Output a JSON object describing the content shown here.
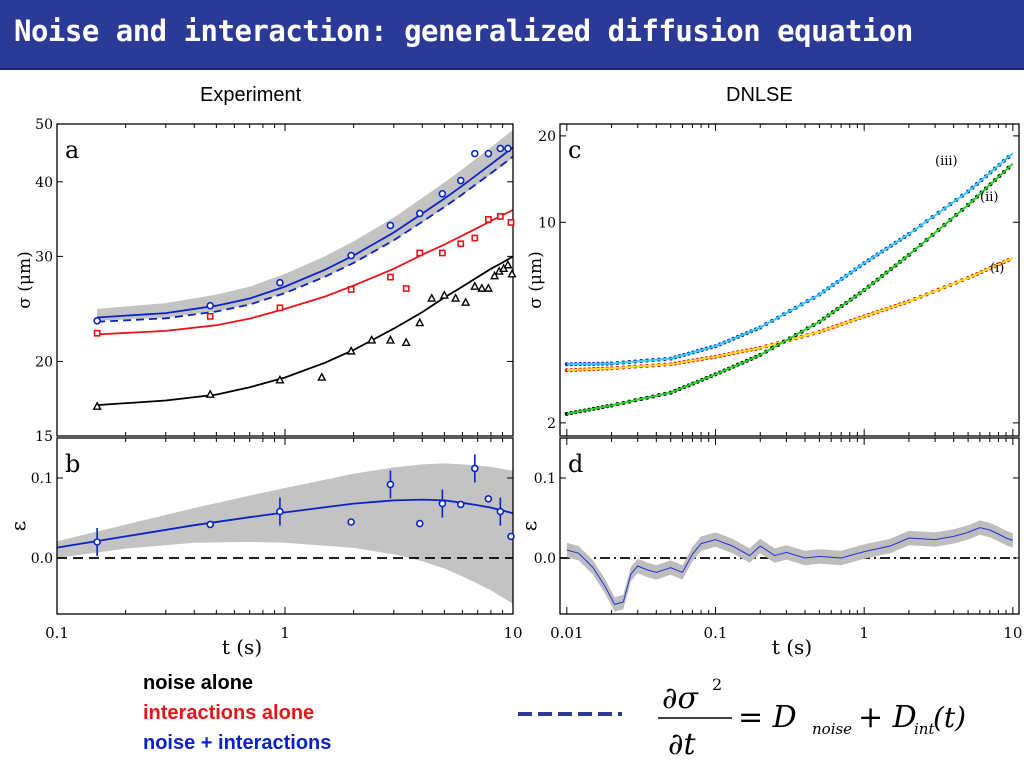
{
  "slide": {
    "title": "Noise and interaction: generalized diffusion equation",
    "col_left_heading": "Experiment",
    "col_right_heading": "DNLSE"
  },
  "legend": {
    "noise": "noise alone",
    "interactions": "interactions alone",
    "both": "noise + interactions",
    "colors": {
      "noise": "#000000",
      "interactions": "#e8141a",
      "both": "#0a22c8"
    }
  },
  "equation": {
    "numerator": "∂σ",
    "power": "2",
    "denominator": "∂t",
    "rhs": "= D",
    "sub1": "noise",
    "plus": "+ D",
    "sub2": "int",
    "arg": "(t)"
  },
  "chart_data": [
    {
      "id": "a",
      "type": "scatter",
      "panel_label": "a",
      "xscale": "log",
      "yscale": "log",
      "xlim": [
        0.1,
        10
      ],
      "ylim": [
        15,
        50
      ],
      "yticks": [
        "15",
        "20",
        "30",
        "40",
        "50"
      ],
      "ylabel": "σ (μm)",
      "shaded_band": true,
      "series": [
        {
          "key": "noise",
          "color": "#000000",
          "marker": "triangle",
          "points": [
            [
              0.15,
              16.8
            ],
            [
              0.47,
              17.6
            ],
            [
              0.95,
              18.6
            ],
            [
              1.45,
              18.8
            ],
            [
              1.95,
              20.8
            ],
            [
              2.4,
              21.7
            ],
            [
              2.9,
              21.7
            ],
            [
              3.4,
              21.5
            ],
            [
              3.9,
              23.2
            ],
            [
              4.4,
              25.5
            ],
            [
              5.0,
              25.8
            ],
            [
              5.6,
              25.5
            ],
            [
              6.2,
              25.1
            ],
            [
              6.8,
              26.7
            ],
            [
              7.3,
              26.5
            ],
            [
              7.8,
              26.5
            ],
            [
              8.3,
              27.8
            ],
            [
              8.7,
              28.3
            ],
            [
              9.1,
              28.6
            ],
            [
              9.5,
              29.0
            ],
            [
              9.9,
              28.0
            ]
          ],
          "fit": [
            [
              0.15,
              16.9
            ],
            [
              0.3,
              17.2
            ],
            [
              0.5,
              17.6
            ],
            [
              0.7,
              18.1
            ],
            [
              1.0,
              18.8
            ],
            [
              1.5,
              19.9
            ],
            [
              2.0,
              20.9
            ],
            [
              3.0,
              22.7
            ],
            [
              4.0,
              24.2
            ],
            [
              5.0,
              25.6
            ],
            [
              6.0,
              26.7
            ],
            [
              7.0,
              27.7
            ],
            [
              8.0,
              28.6
            ],
            [
              9.0,
              29.3
            ],
            [
              10.0,
              30.0
            ]
          ]
        },
        {
          "key": "interactions",
          "color": "#e8141a",
          "marker": "square",
          "points": [
            [
              0.15,
              22.3
            ],
            [
              0.47,
              23.8
            ],
            [
              0.95,
              24.6
            ],
            [
              1.95,
              26.4
            ],
            [
              2.9,
              27.7
            ],
            [
              3.4,
              26.5
            ],
            [
              3.9,
              30.4
            ],
            [
              4.9,
              30.4
            ],
            [
              5.9,
              31.5
            ],
            [
              6.8,
              32.2
            ],
            [
              7.8,
              34.6
            ],
            [
              8.8,
              35.0
            ],
            [
              9.8,
              34.2
            ]
          ],
          "fit": [
            [
              0.15,
              22.2
            ],
            [
              0.3,
              22.5
            ],
            [
              0.5,
              23.0
            ],
            [
              0.7,
              23.6
            ],
            [
              1.0,
              24.5
            ],
            [
              1.5,
              25.7
            ],
            [
              2.0,
              26.8
            ],
            [
              3.0,
              28.6
            ],
            [
              4.0,
              30.2
            ],
            [
              5.0,
              31.4
            ],
            [
              6.0,
              32.5
            ],
            [
              7.0,
              33.5
            ],
            [
              8.0,
              34.4
            ],
            [
              9.0,
              35.2
            ],
            [
              10.0,
              35.9
            ]
          ]
        },
        {
          "key": "both",
          "color": "#0a22c8",
          "marker": "circle",
          "points": [
            [
              0.15,
              23.4
            ],
            [
              0.47,
              24.8
            ],
            [
              0.95,
              27.1
            ],
            [
              1.95,
              30.1
            ],
            [
              2.9,
              33.8
            ],
            [
              3.9,
              35.4
            ],
            [
              4.9,
              38.2
            ],
            [
              5.9,
              40.2
            ],
            [
              6.8,
              44.6
            ],
            [
              7.8,
              44.6
            ],
            [
              8.8,
              45.5
            ],
            [
              9.5,
              45.5
            ]
          ],
          "fit": [
            [
              0.15,
              23.7
            ],
            [
              0.3,
              24.1
            ],
            [
              0.5,
              24.8
            ],
            [
              0.7,
              25.5
            ],
            [
              1.0,
              26.7
            ],
            [
              1.5,
              28.5
            ],
            [
              2.0,
              30.1
            ],
            [
              3.0,
              32.9
            ],
            [
              4.0,
              35.4
            ],
            [
              5.0,
              37.5
            ],
            [
              6.0,
              39.4
            ],
            [
              7.0,
              41.2
            ],
            [
              8.0,
              42.8
            ],
            [
              9.0,
              44.3
            ],
            [
              10.0,
              45.7
            ]
          ]
        }
      ]
    },
    {
      "id": "b",
      "type": "scatter",
      "panel_label": "b",
      "xscale": "log",
      "xlim": [
        0.1,
        10
      ],
      "ylim": [
        -0.07,
        0.15
      ],
      "yticks": [
        "0.0",
        "0.1"
      ],
      "ylabel": "ε",
      "xlabel": "t (s)",
      "xticks": [
        "0.1",
        "1",
        "10"
      ],
      "zero_line": true,
      "shaded_band": true,
      "series": [
        {
          "key": "both",
          "color": "#0a22c8",
          "marker": "circle",
          "points": [
            [
              0.15,
              0.02
            ],
            [
              0.47,
              0.042
            ],
            [
              0.95,
              0.058
            ],
            [
              1.95,
              0.045
            ],
            [
              2.9,
              0.092
            ],
            [
              3.9,
              0.043
            ],
            [
              4.9,
              0.068
            ],
            [
              5.9,
              0.067
            ],
            [
              6.8,
              0.112
            ],
            [
              7.8,
              0.074
            ],
            [
              8.8,
              0.058
            ],
            [
              9.8,
              0.027
            ]
          ],
          "fit": [
            [
              0.1,
              0.013
            ],
            [
              0.2,
              0.027
            ],
            [
              0.4,
              0.041
            ],
            [
              0.7,
              0.051
            ],
            [
              1.0,
              0.057
            ],
            [
              2.0,
              0.068
            ],
            [
              3.0,
              0.072
            ],
            [
              4.0,
              0.073
            ],
            [
              5.0,
              0.072
            ],
            [
              6.0,
              0.069
            ],
            [
              7.0,
              0.066
            ],
            [
              8.0,
              0.063
            ],
            [
              10.0,
              0.056
            ]
          ]
        }
      ]
    },
    {
      "id": "c",
      "type": "line",
      "panel_label": "c",
      "xscale": "log",
      "yscale": "log",
      "xlim": [
        0.009,
        11
      ],
      "ylim": [
        1.8,
        22
      ],
      "yticks": [
        "2",
        "10",
        "20"
      ],
      "ylabel": "σ (μm)",
      "annotations": [
        "(iii)",
        "(ii)",
        "(i)"
      ],
      "series": [
        {
          "key": "both",
          "color": "#0a22c8",
          "points": [
            [
              0.01,
              3.2
            ],
            [
              0.02,
              3.22
            ],
            [
              0.05,
              3.35
            ],
            [
              0.1,
              3.7
            ],
            [
              0.2,
              4.3
            ],
            [
              0.5,
              5.6
            ],
            [
              1,
              7.2
            ],
            [
              2,
              9.1
            ],
            [
              5,
              12.8
            ],
            [
              10,
              17.4
            ]
          ]
        },
        {
          "key": "interactions",
          "color": "#e8141a",
          "points": [
            [
              0.01,
              3.05
            ],
            [
              0.02,
              3.1
            ],
            [
              0.05,
              3.2
            ],
            [
              0.1,
              3.4
            ],
            [
              0.2,
              3.65
            ],
            [
              0.5,
              4.15
            ],
            [
              1,
              4.7
            ],
            [
              2,
              5.3
            ],
            [
              5,
              6.4
            ],
            [
              10,
              7.5
            ]
          ]
        },
        {
          "key": "noise",
          "color": "#000000",
          "points": [
            [
              0.01,
              2.15
            ],
            [
              0.02,
              2.3
            ],
            [
              0.05,
              2.55
            ],
            [
              0.1,
              2.95
            ],
            [
              0.2,
              3.45
            ],
            [
              0.5,
              4.5
            ],
            [
              1,
              5.8
            ],
            [
              2,
              7.7
            ],
            [
              5,
              11.5
            ],
            [
              10,
              16.0
            ]
          ]
        }
      ]
    },
    {
      "id": "d",
      "type": "line",
      "panel_label": "d",
      "xscale": "log",
      "xlim": [
        0.009,
        11
      ],
      "ylim": [
        -0.07,
        0.15
      ],
      "yticks": [
        "0.0",
        "0.1"
      ],
      "ylabel": "ε",
      "xlabel": "t (s)",
      "xticks": [
        "0.01",
        "0.1",
        "1",
        "10"
      ],
      "zero_line": true,
      "series": [
        {
          "key": "both",
          "color": "#2432d8",
          "points": [
            [
              0.01,
              0.01
            ],
            [
              0.012,
              0.006
            ],
            [
              0.015,
              -0.012
            ],
            [
              0.018,
              -0.035
            ],
            [
              0.021,
              -0.058
            ],
            [
              0.024,
              -0.055
            ],
            [
              0.027,
              -0.02
            ],
            [
              0.03,
              -0.01
            ],
            [
              0.035,
              -0.015
            ],
            [
              0.04,
              -0.018
            ],
            [
              0.05,
              -0.012
            ],
            [
              0.06,
              -0.018
            ],
            [
              0.07,
              0.005
            ],
            [
              0.08,
              0.018
            ],
            [
              0.1,
              0.023
            ],
            [
              0.13,
              0.015
            ],
            [
              0.17,
              0.003
            ],
            [
              0.2,
              0.015
            ],
            [
              0.25,
              0.003
            ],
            [
              0.3,
              0.007
            ],
            [
              0.4,
              0.0
            ],
            [
              0.5,
              0.002
            ],
            [
              0.7,
              0.0
            ],
            [
              1,
              0.008
            ],
            [
              1.5,
              0.015
            ],
            [
              2,
              0.025
            ],
            [
              3,
              0.023
            ],
            [
              4,
              0.027
            ],
            [
              5,
              0.032
            ],
            [
              6,
              0.038
            ],
            [
              7,
              0.035
            ],
            [
              8,
              0.03
            ],
            [
              9,
              0.025
            ],
            [
              10,
              0.022
            ]
          ]
        }
      ]
    }
  ]
}
